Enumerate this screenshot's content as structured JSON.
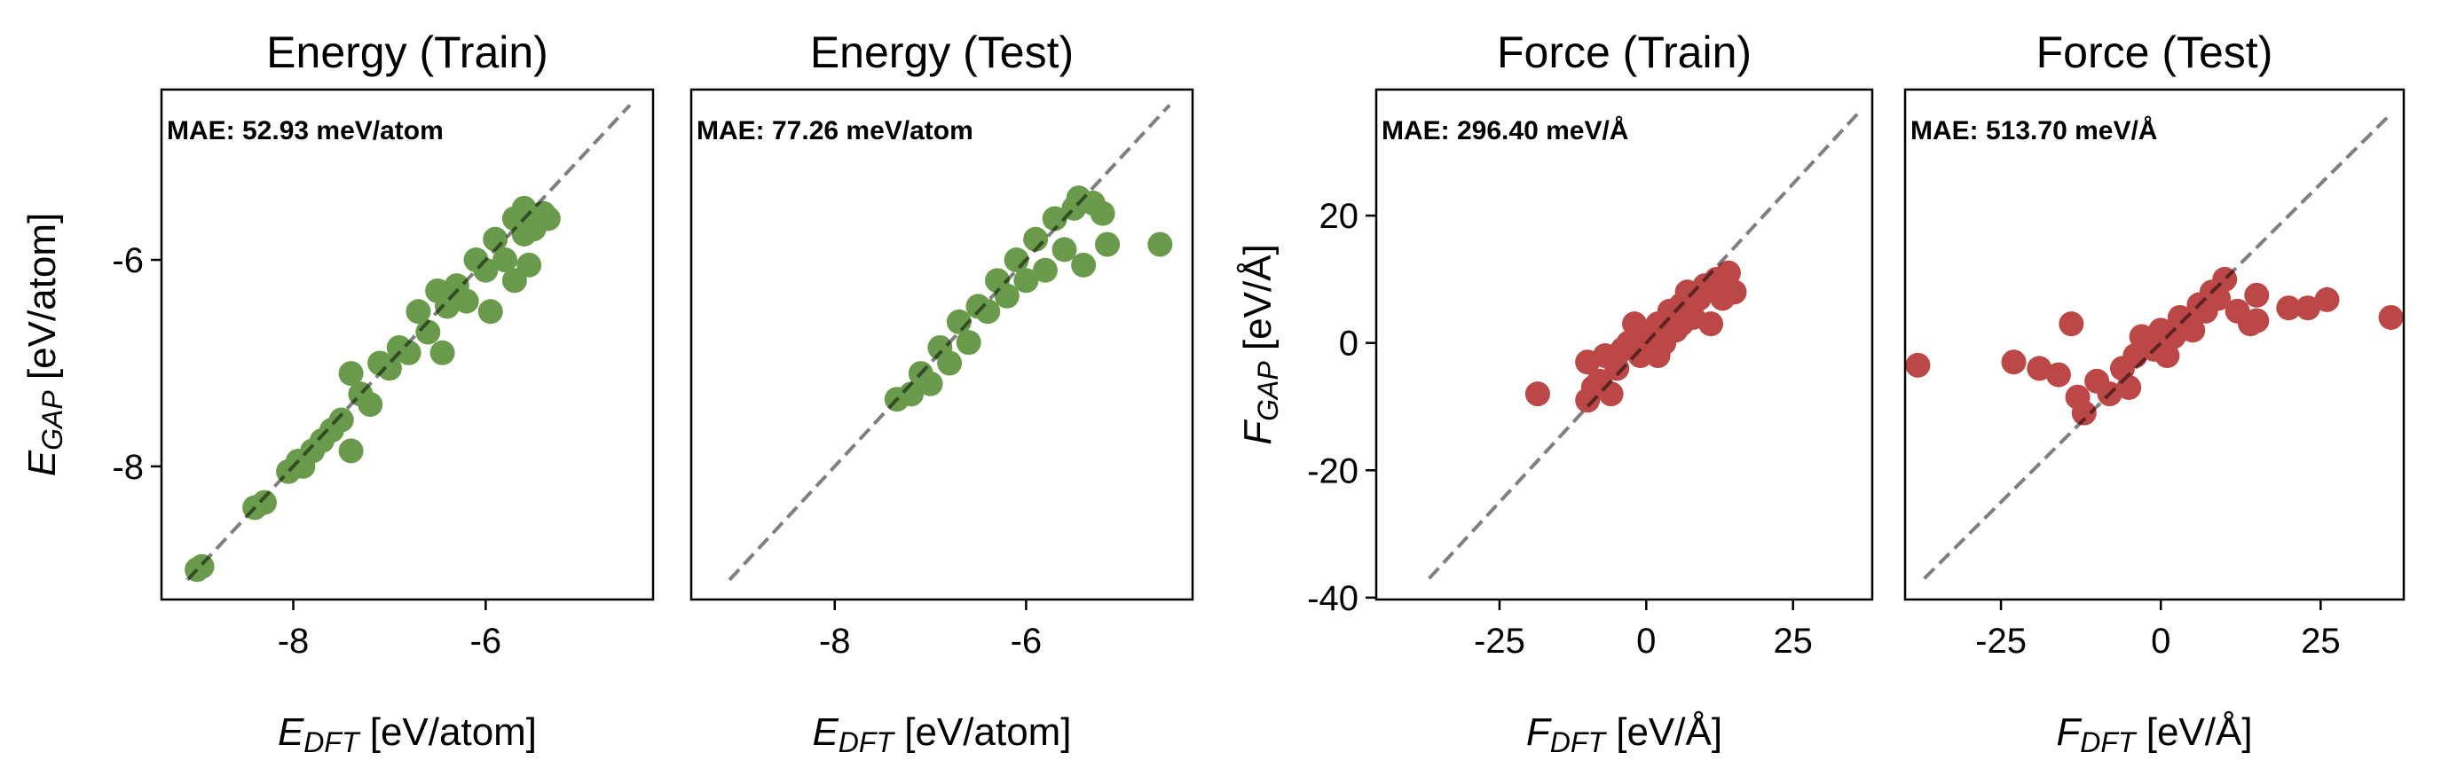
{
  "chart_data": [
    {
      "type": "scatter",
      "title": "Energy (Train)",
      "xlabel": {
        "main": "E",
        "sub": "DFT",
        "unit": " [eV/atom]"
      },
      "ylabel": {
        "main": "E",
        "sub": "GAP",
        "unit": " [eV/atom]"
      },
      "annotation": "MAE: 52.93 meV/atom",
      "xlim": [
        -9.37,
        -4.26
      ],
      "ylim": [
        -9.29,
        -4.35
      ],
      "xticks": [
        -8,
        -6
      ],
      "xtick_labels": [
        "-8",
        "-6"
      ],
      "yticks": [
        -8,
        -6
      ],
      "ytick_labels": [
        "-8",
        "-6"
      ],
      "show_yticks": true,
      "diagonal": [
        -9.1,
        -4.5
      ],
      "color": "#6a9a4b",
      "points": [
        [
          -9.0,
          -9.0
        ],
        [
          -8.95,
          -8.97
        ],
        [
          -8.4,
          -8.4
        ],
        [
          -8.3,
          -8.35
        ],
        [
          -8.05,
          -8.05
        ],
        [
          -7.95,
          -7.95
        ],
        [
          -7.9,
          -8.0
        ],
        [
          -7.8,
          -7.85
        ],
        [
          -7.7,
          -7.75
        ],
        [
          -7.6,
          -7.65
        ],
        [
          -7.5,
          -7.55
        ],
        [
          -7.4,
          -7.85
        ],
        [
          -7.4,
          -7.1
        ],
        [
          -7.3,
          -7.3
        ],
        [
          -7.2,
          -7.4
        ],
        [
          -7.1,
          -7.0
        ],
        [
          -7.0,
          -7.05
        ],
        [
          -6.9,
          -6.85
        ],
        [
          -6.8,
          -6.9
        ],
        [
          -6.7,
          -6.5
        ],
        [
          -6.6,
          -6.7
        ],
        [
          -6.5,
          -6.3
        ],
        [
          -6.45,
          -6.9
        ],
        [
          -6.4,
          -6.45
        ],
        [
          -6.3,
          -6.25
        ],
        [
          -6.2,
          -6.4
        ],
        [
          -6.1,
          -6.0
        ],
        [
          -6.0,
          -6.1
        ],
        [
          -5.95,
          -6.5
        ],
        [
          -5.9,
          -5.8
        ],
        [
          -5.8,
          -6.0
        ],
        [
          -5.7,
          -5.6
        ],
        [
          -5.7,
          -6.2
        ],
        [
          -5.6,
          -5.75
        ],
        [
          -5.55,
          -6.05
        ],
        [
          -5.5,
          -5.7
        ],
        [
          -5.4,
          -5.55
        ],
        [
          -5.6,
          -5.5
        ],
        [
          -5.35,
          -5.6
        ]
      ]
    },
    {
      "type": "scatter",
      "title": "Energy (Test)",
      "xlabel": {
        "main": "E",
        "sub": "DFT",
        "unit": " [eV/atom]"
      },
      "ylabel": null,
      "annotation": "MAE: 77.26 meV/atom",
      "xlim": [
        -9.5,
        -4.26
      ],
      "ylim": [
        -9.29,
        -4.35
      ],
      "xticks": [
        -8,
        -6
      ],
      "xtick_labels": [
        "-8",
        "-6"
      ],
      "yticks": [],
      "ytick_labels": [],
      "show_yticks": false,
      "diagonal": [
        -9.1,
        -4.5
      ],
      "color": "#6a9a4b",
      "points": [
        [
          -7.35,
          -7.35
        ],
        [
          -7.2,
          -7.3
        ],
        [
          -7.1,
          -7.1
        ],
        [
          -7.0,
          -7.2
        ],
        [
          -6.9,
          -6.85
        ],
        [
          -6.8,
          -7.0
        ],
        [
          -6.7,
          -6.6
        ],
        [
          -6.6,
          -6.8
        ],
        [
          -6.5,
          -6.45
        ],
        [
          -6.4,
          -6.5
        ],
        [
          -6.3,
          -6.2
        ],
        [
          -6.2,
          -6.35
        ],
        [
          -6.1,
          -6.0
        ],
        [
          -6.0,
          -6.2
        ],
        [
          -5.9,
          -5.8
        ],
        [
          -5.8,
          -6.1
        ],
        [
          -5.7,
          -5.6
        ],
        [
          -5.6,
          -5.9
        ],
        [
          -5.5,
          -5.5
        ],
        [
          -5.45,
          -5.4
        ],
        [
          -5.3,
          -5.45
        ],
        [
          -5.4,
          -6.05
        ],
        [
          -5.2,
          -5.55
        ],
        [
          -5.15,
          -5.85
        ],
        [
          -4.6,
          -5.85
        ]
      ]
    },
    {
      "type": "scatter",
      "title": "Force (Train)",
      "xlabel": {
        "main": "F",
        "sub": "DFT",
        "unit": " [eV/Å]"
      },
      "ylabel": {
        "main": "F",
        "sub": "GAP",
        "unit": " [eV/Å]"
      },
      "annotation": "MAE: 296.40 meV/Å",
      "xlim": [
        -46,
        38.5
      ],
      "ylim": [
        -40.3,
        39.8
      ],
      "xticks": [
        -25,
        0,
        25
      ],
      "xtick_labels": [
        "-25",
        "0",
        "25"
      ],
      "yticks": [
        -40,
        -20,
        0,
        20
      ],
      "ytick_labels": [
        "-40",
        "-20",
        "0",
        "20"
      ],
      "show_yticks": true,
      "diagonal": [
        -37,
        36
      ],
      "color": "#bb4747",
      "points": [
        [
          -18.5,
          -8
        ],
        [
          -10,
          -3
        ],
        [
          -10,
          -9
        ],
        [
          -9,
          -7
        ],
        [
          -8,
          -6
        ],
        [
          -7,
          -2
        ],
        [
          -6,
          -8
        ],
        [
          -5,
          -4
        ],
        [
          -4,
          -1
        ],
        [
          -3,
          0
        ],
        [
          -2,
          3
        ],
        [
          -1,
          -2
        ],
        [
          0,
          1
        ],
        [
          1,
          -1
        ],
        [
          2,
          3
        ],
        [
          2,
          -2
        ],
        [
          3,
          0
        ],
        [
          4,
          5
        ],
        [
          5,
          2
        ],
        [
          6,
          6
        ],
        [
          6,
          3
        ],
        [
          7,
          8
        ],
        [
          8,
          4
        ],
        [
          9,
          7
        ],
        [
          10,
          9
        ],
        [
          11,
          3
        ],
        [
          12,
          10
        ],
        [
          13,
          7
        ],
        [
          14,
          11
        ],
        [
          15,
          8
        ]
      ]
    },
    {
      "type": "scatter",
      "title": "Force (Test)",
      "xlabel": {
        "main": "F",
        "sub": "DFT",
        "unit": " [eV/Å]"
      },
      "ylabel": null,
      "annotation": "MAE: 513.70 meV/Å",
      "xlim": [
        -40,
        38
      ],
      "ylim": [
        -40.3,
        39.8
      ],
      "xticks": [
        -25,
        0,
        25
      ],
      "xtick_labels": [
        "-25",
        "0",
        "25"
      ],
      "yticks": [],
      "ytick_labels": [],
      "show_yticks": false,
      "diagonal": [
        -37,
        36
      ],
      "color": "#bb4747",
      "points": [
        [
          -38,
          -3.5
        ],
        [
          -23,
          -3
        ],
        [
          -19,
          -4
        ],
        [
          -16,
          -5
        ],
        [
          -14,
          3
        ],
        [
          -13,
          -8.5
        ],
        [
          -12,
          -11
        ],
        [
          -10,
          -6
        ],
        [
          -8,
          -8
        ],
        [
          -6,
          -4
        ],
        [
          -5,
          -7
        ],
        [
          -4,
          -2
        ],
        [
          -3,
          1
        ],
        [
          -1,
          -1
        ],
        [
          0,
          2
        ],
        [
          1,
          -2
        ],
        [
          2,
          1
        ],
        [
          3,
          4
        ],
        [
          4,
          3
        ],
        [
          5,
          2
        ],
        [
          6,
          6
        ],
        [
          7,
          5
        ],
        [
          8,
          8
        ],
        [
          9,
          7
        ],
        [
          10,
          10
        ],
        [
          12,
          5
        ],
        [
          14,
          3
        ],
        [
          15,
          7.5
        ],
        [
          15,
          3.5
        ],
        [
          20,
          5.5
        ],
        [
          23,
          5.5
        ],
        [
          26,
          6.8
        ],
        [
          36,
          4
        ]
      ]
    }
  ]
}
